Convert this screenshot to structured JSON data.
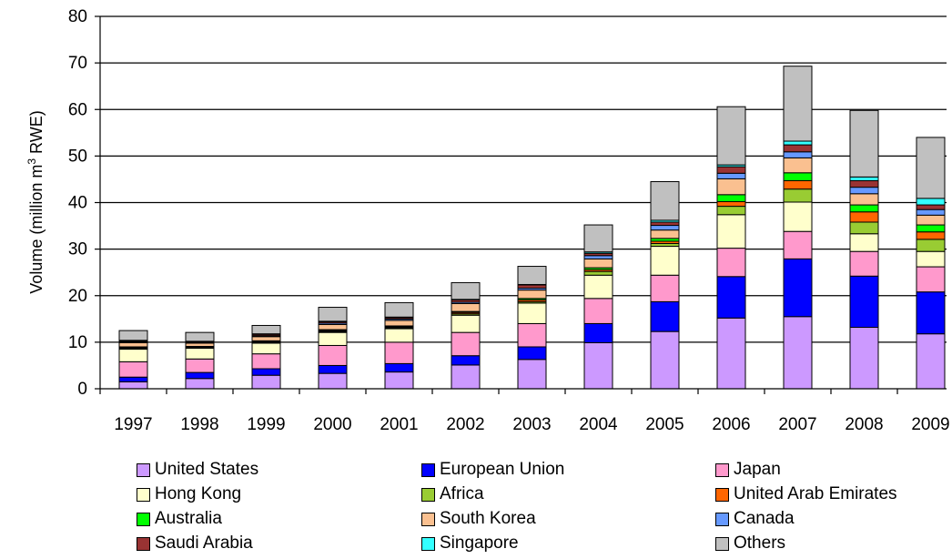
{
  "chart_data": {
    "type": "bar",
    "stacked": true,
    "ylabel_parts": [
      "Volume (million m",
      "3",
      " RWE)"
    ],
    "ylim": [
      0,
      80
    ],
    "yticks": [
      0,
      10,
      20,
      30,
      40,
      50,
      60,
      70,
      80
    ],
    "grid": true,
    "legend_position": "bottom",
    "categories": [
      "1997",
      "1998",
      "1999",
      "2000",
      "2001",
      "2002",
      "2003",
      "2004",
      "2005",
      "2006",
      "2007",
      "2008",
      "2009"
    ],
    "series": [
      {
        "name": "United States",
        "color": "#cc99ff",
        "values": [
          1.5,
          2.2,
          2.9,
          3.3,
          3.6,
          5.1,
          6.3,
          9.9,
          12.3,
          15.2,
          15.5,
          13.2,
          11.8
        ]
      },
      {
        "name": "European Union",
        "color": "#0000ff",
        "values": [
          1.0,
          1.3,
          1.4,
          1.7,
          1.8,
          2.0,
          2.7,
          4.1,
          6.4,
          8.9,
          12.4,
          11.0,
          9.0
        ]
      },
      {
        "name": "Japan",
        "color": "#ff99cc",
        "values": [
          3.3,
          2.9,
          3.2,
          4.3,
          4.6,
          5.0,
          5.0,
          5.4,
          5.7,
          6.1,
          5.9,
          5.3,
          5.4
        ]
      },
      {
        "name": "Hong Kong",
        "color": "#ffffcc",
        "values": [
          2.7,
          2.3,
          2.3,
          2.8,
          2.9,
          3.7,
          4.4,
          5.0,
          6.2,
          7.2,
          6.3,
          3.8,
          3.3
        ]
      },
      {
        "name": "Africa",
        "color": "#99cc33",
        "values": [
          0.2,
          0.1,
          0.2,
          0.2,
          0.2,
          0.3,
          0.3,
          0.8,
          0.6,
          1.8,
          2.8,
          2.5,
          2.6
        ]
      },
      {
        "name": "United Arab Emirates",
        "color": "#ff6600",
        "values": [
          0.1,
          0.1,
          0.1,
          0.2,
          0.2,
          0.3,
          0.4,
          0.4,
          0.5,
          1.0,
          1.8,
          2.2,
          1.6
        ]
      },
      {
        "name": "Australia",
        "color": "#00ff00",
        "values": [
          0.2,
          0.2,
          0.2,
          0.2,
          0.2,
          0.2,
          0.3,
          0.4,
          0.6,
          1.5,
          1.7,
          1.5,
          1.5
        ]
      },
      {
        "name": "South Korea",
        "color": "#fac090",
        "values": [
          0.9,
          0.7,
          0.9,
          1.1,
          1.2,
          1.7,
          1.8,
          1.9,
          1.8,
          3.4,
          3.2,
          2.4,
          2.1
        ]
      },
      {
        "name": "Canada",
        "color": "#6699ff",
        "values": [
          0.2,
          0.2,
          0.2,
          0.3,
          0.3,
          0.3,
          0.4,
          0.7,
          1.0,
          1.2,
          1.3,
          1.4,
          1.2
        ]
      },
      {
        "name": "Saudi Arabia",
        "color": "#993333",
        "values": [
          0.2,
          0.1,
          0.3,
          0.3,
          0.3,
          0.5,
          0.7,
          0.5,
          0.7,
          1.4,
          1.5,
          1.4,
          1.0
        ]
      },
      {
        "name": "Singapore",
        "color": "#33ffff",
        "values": [
          0.1,
          0.1,
          0.1,
          0.1,
          0.1,
          0.1,
          0.1,
          0.3,
          0.4,
          0.4,
          0.8,
          0.8,
          1.4
        ]
      },
      {
        "name": "Others",
        "color": "#c0c0c0",
        "values": [
          2.1,
          1.9,
          1.8,
          3.0,
          3.1,
          3.6,
          3.9,
          5.8,
          8.3,
          12.5,
          16.1,
          14.3,
          13.1
        ]
      }
    ]
  }
}
